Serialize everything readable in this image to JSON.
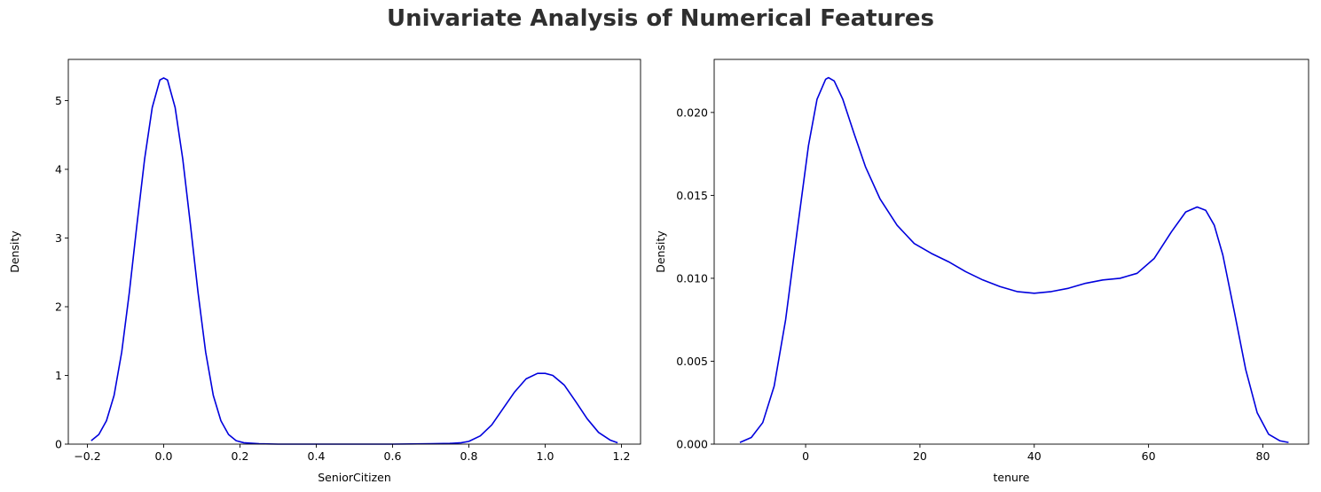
{
  "figure": {
    "suptitle": "Univariate Analysis of Numerical Features"
  },
  "chart_data": [
    {
      "type": "line",
      "title": "",
      "xlabel": "SeniorCitizen",
      "ylabel": "Density",
      "xlim": [
        -0.25,
        1.25
      ],
      "ylim": [
        0,
        5.6
      ],
      "xticks": [
        -0.2,
        0.0,
        0.2,
        0.4,
        0.6,
        0.8,
        1.0,
        1.2
      ],
      "xtick_labels": [
        "−0.2",
        "0.0",
        "0.2",
        "0.4",
        "0.6",
        "0.8",
        "1.0",
        "1.2"
      ],
      "yticks": [
        0,
        1,
        2,
        3,
        4,
        5
      ],
      "ytick_labels": [
        "0",
        "1",
        "2",
        "3",
        "4",
        "5"
      ],
      "grid": false,
      "series": [
        {
          "color": "#0000dd",
          "x": [
            -0.19,
            -0.17,
            -0.15,
            -0.13,
            -0.11,
            -0.09,
            -0.07,
            -0.05,
            -0.03,
            -0.01,
            0.0,
            0.01,
            0.03,
            0.05,
            0.07,
            0.09,
            0.11,
            0.13,
            0.15,
            0.17,
            0.19,
            0.21,
            0.25,
            0.3,
            0.4,
            0.5,
            0.6,
            0.7,
            0.75,
            0.78,
            0.8,
            0.83,
            0.86,
            0.89,
            0.92,
            0.95,
            0.98,
            1.0,
            1.02,
            1.05,
            1.08,
            1.11,
            1.14,
            1.17,
            1.19
          ],
          "y": [
            0.05,
            0.14,
            0.34,
            0.71,
            1.34,
            2.21,
            3.2,
            4.15,
            4.9,
            5.3,
            5.33,
            5.3,
            4.9,
            4.15,
            3.2,
            2.21,
            1.34,
            0.71,
            0.34,
            0.14,
            0.05,
            0.02,
            0.005,
            0.0,
            0.0,
            0.0,
            0.0,
            0.005,
            0.01,
            0.02,
            0.04,
            0.12,
            0.28,
            0.52,
            0.76,
            0.95,
            1.03,
            1.03,
            1.0,
            0.86,
            0.62,
            0.37,
            0.17,
            0.06,
            0.02
          ]
        }
      ]
    },
    {
      "type": "line",
      "title": "",
      "xlabel": "tenure",
      "ylabel": "Density",
      "xlim": [
        -16,
        88
      ],
      "ylim": [
        0,
        0.0232
      ],
      "xticks": [
        0,
        20,
        40,
        60,
        80
      ],
      "xtick_labels": [
        "0",
        "20",
        "40",
        "60",
        "80"
      ],
      "yticks": [
        0,
        0.005,
        0.01,
        0.015,
        0.02
      ],
      "ytick_labels": [
        "0.000",
        "0.005",
        "0.010",
        "0.015",
        "0.020"
      ],
      "grid": false,
      "series": [
        {
          "color": "#0000dd",
          "x": [
            -11.5,
            -9.5,
            -7.5,
            -5.5,
            -3.5,
            -1.5,
            0.5,
            2.0,
            3.5,
            4.0,
            5.0,
            6.5,
            8.5,
            10.5,
            13.0,
            16.0,
            19.0,
            22.0,
            25.0,
            28.0,
            31.0,
            34.0,
            37.0,
            40.0,
            43.0,
            46.0,
            49.0,
            52.0,
            55.0,
            58.0,
            61.0,
            64.0,
            66.5,
            68.5,
            70.0,
            71.5,
            73.0,
            75.0,
            77.0,
            79.0,
            81.0,
            83.0,
            84.5
          ],
          "y": [
            0.0001,
            0.0004,
            0.0013,
            0.0035,
            0.0075,
            0.0128,
            0.018,
            0.0208,
            0.022,
            0.0221,
            0.0219,
            0.0208,
            0.0187,
            0.0167,
            0.0148,
            0.0132,
            0.0121,
            0.0115,
            0.011,
            0.0104,
            0.0099,
            0.0095,
            0.0092,
            0.0091,
            0.0092,
            0.0094,
            0.0097,
            0.0099,
            0.01,
            0.0103,
            0.0112,
            0.0128,
            0.014,
            0.0143,
            0.0141,
            0.0132,
            0.0114,
            0.008,
            0.0045,
            0.0019,
            0.0006,
            0.0002,
            0.0001
          ]
        }
      ]
    }
  ]
}
